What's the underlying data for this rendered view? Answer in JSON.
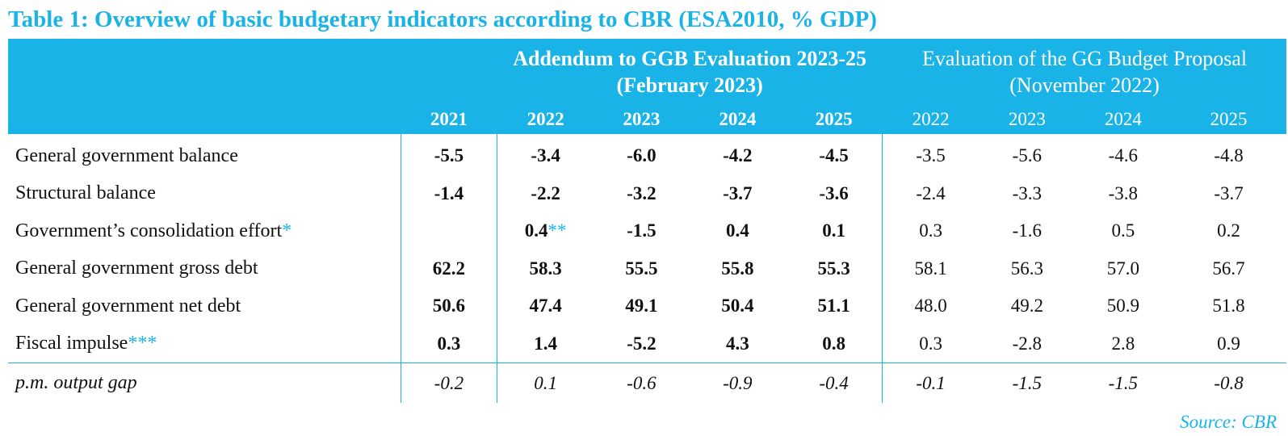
{
  "title": "Table 1: Overview of basic budgetary indicators according to CBR (ESA2010, % GDP)",
  "header": {
    "group1": "Addendum to GGB Evaluation 2023-25 (February 2023)",
    "group2": "Evaluation of the GG Budget Proposal (November 2022)",
    "years": [
      "2021",
      "2022",
      "2023",
      "2024",
      "2025",
      "2022",
      "2023",
      "2024",
      "2025"
    ]
  },
  "rows": [
    {
      "label": "General government balance",
      "mark": "",
      "values": [
        "-5.5",
        "-3.4",
        "-6.0",
        "-4.2",
        "-4.5",
        "-3.5",
        "-5.6",
        "-4.6",
        "-4.8"
      ]
    },
    {
      "label": "Structural balance",
      "mark": "",
      "values": [
        "-1.4",
        "-2.2",
        "-3.2",
        "-3.7",
        "-3.6",
        "-2.4",
        "-3.3",
        "-3.8",
        "-3.7"
      ]
    },
    {
      "label": "Government’s consolidation effort",
      "mark": "*",
      "values": [
        "",
        "0.4",
        "-1.5",
        "0.4",
        "0.1",
        "0.3",
        "-1.6",
        "0.5",
        "0.2"
      ],
      "value_mark": "**"
    },
    {
      "label": "General government gross debt",
      "mark": "",
      "values": [
        "62.2",
        "58.3",
        "55.5",
        "55.8",
        "55.3",
        "58.1",
        "56.3",
        "57.0",
        "56.7"
      ]
    },
    {
      "label": "General government net debt",
      "mark": "",
      "values": [
        "50.6",
        "47.4",
        "49.1",
        "50.4",
        "51.1",
        "48.0",
        "49.2",
        "50.9",
        "51.8"
      ]
    },
    {
      "label": "Fiscal impulse",
      "mark": "***",
      "values": [
        "0.3",
        "1.4",
        "-5.2",
        "4.3",
        "0.8",
        "0.3",
        "-2.8",
        "2.8",
        "0.9"
      ]
    }
  ],
  "pm_row": {
    "label": "p.m. output gap",
    "values": [
      "-0.2",
      "0.1",
      "-0.6",
      "-0.9",
      "-0.4",
      "-0.1",
      "-1.5",
      "-1.5",
      "-0.8"
    ]
  },
  "source": "Source: CBR",
  "colors": {
    "accent": "#1ab3e8"
  }
}
